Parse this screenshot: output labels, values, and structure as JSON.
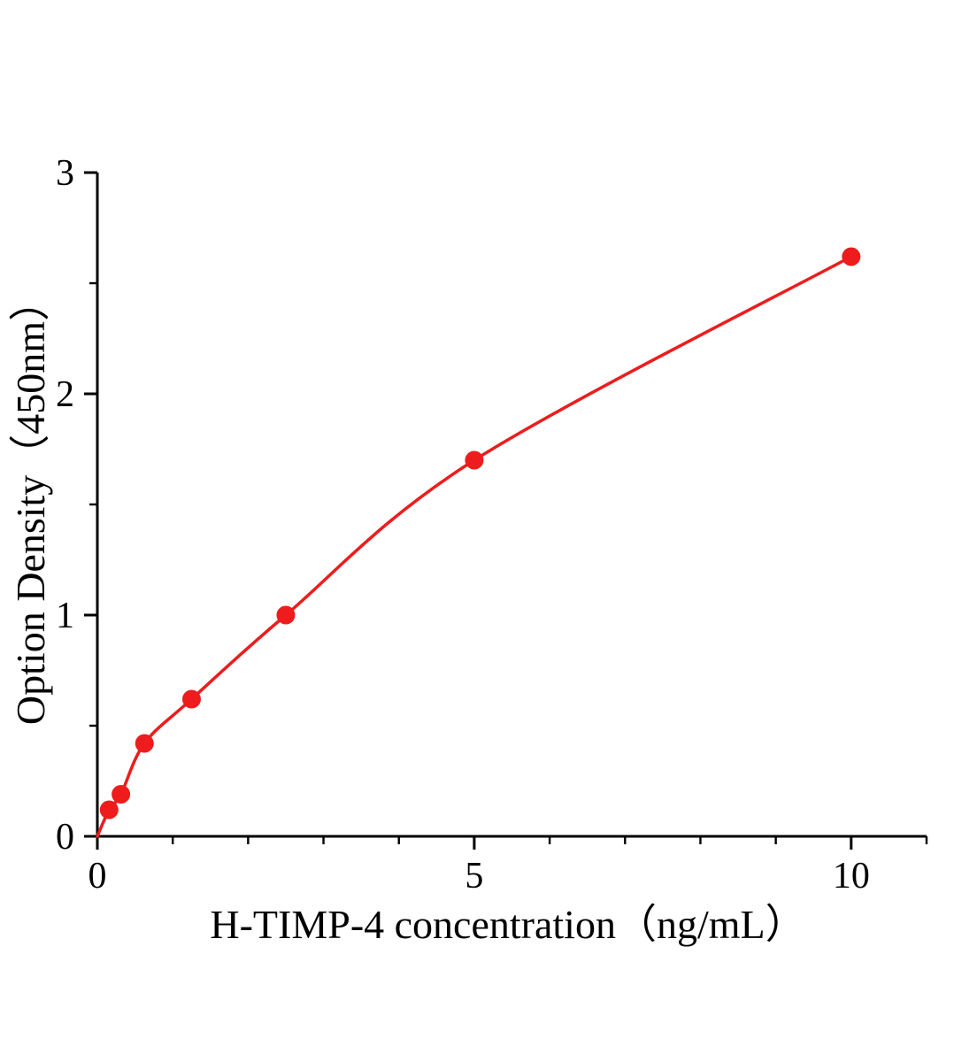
{
  "chart_data": {
    "type": "line",
    "markers": true,
    "title": "",
    "xlabel": "H-TIMP-4  concentration（ng/mL）",
    "ylabel": "Option Density（450nm）",
    "x": [
      0.156,
      0.3125,
      0.625,
      1.25,
      2.5,
      5,
      10
    ],
    "y": [
      0.12,
      0.19,
      0.42,
      0.62,
      1.0,
      1.7,
      2.62
    ],
    "curve_start": [
      0,
      0
    ],
    "xlim": [
      0,
      11
    ],
    "ylim": [
      0,
      3
    ],
    "x_major_ticks": [
      0,
      5,
      10
    ],
    "x_major_tick_labels": [
      "0",
      "5",
      "10"
    ],
    "x_minor_ticks": [
      1,
      2,
      3,
      4,
      6,
      7,
      8,
      9,
      11
    ],
    "y_major_ticks": [
      0,
      1,
      2,
      3
    ],
    "y_major_tick_labels": [
      "0",
      "1",
      "2",
      "3"
    ],
    "y_minor_ticks": [
      0.5,
      1.5,
      2.5
    ],
    "grid": false,
    "legend": "none",
    "curve_color": "#ee1c1c",
    "point_color": "#ee1c1c",
    "axis_color": "#000000",
    "background_color": "#ffffff"
  }
}
